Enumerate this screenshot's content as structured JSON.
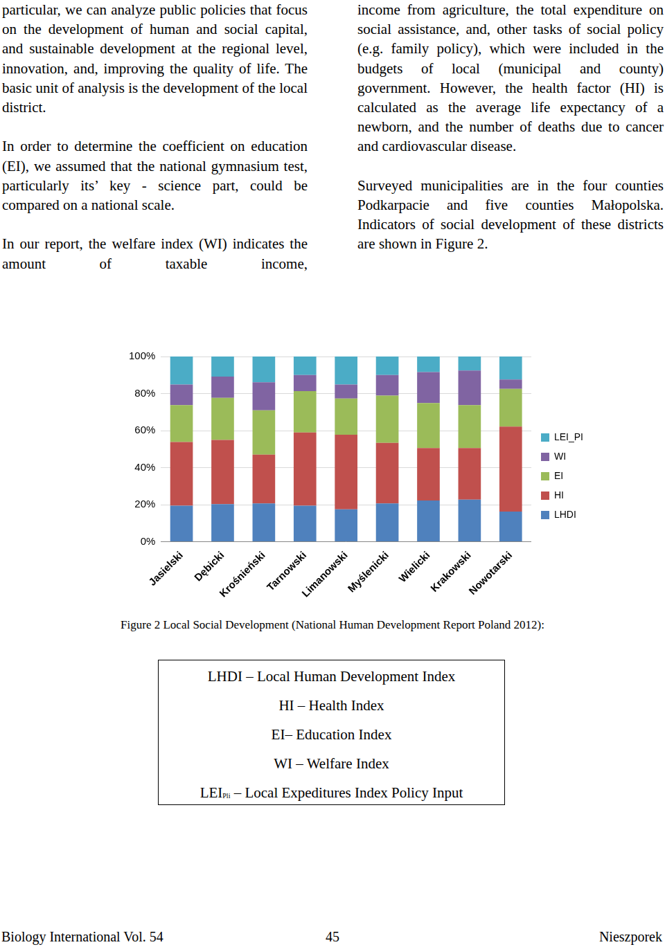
{
  "left_column": [
    "particular, we can analyze public policies that focus on the development of human and social capital, and sustainable development at the regional level, innovation, and, improving the quality of life. The basic unit of analysis is the development of the local district.",
    "In order to determine the coefficient on education (EI), we assumed that the national gymnasium test, particularly its’ key - science part, could be compared on a national scale.",
    "In our report, the welfare index (WI) indicates the amount of taxable income,"
  ],
  "right_column": [
    "income from agriculture, the total expenditure on social assistance, and, other tasks of social policy (e.g. family policy), which were included in the budgets of local (municipal and county) government. However, the health factor (HI) is calculated as the average life expectancy of a newborn, and the number of deaths due to cancer and cardiovascular disease.",
    "Surveyed municipalities are in the four counties Podkarpacie and five counties Małopolska. Indicators of social development of these districts are shown in Figure 2."
  ],
  "chart_data": {
    "type": "bar",
    "stacked": true,
    "grid": true,
    "legend": "right",
    "categories": [
      "Jasielski",
      "Dębicki",
      "Krośnieński",
      "Tarnowski",
      "Limanowski",
      "Myślenicki",
      "Wielicki",
      "Krakowski",
      "Nowotarski"
    ],
    "series": [
      {
        "name": "LHDI",
        "color": "#4f81bd",
        "values": [
          19.5,
          20.3,
          20.7,
          19.5,
          17.5,
          20.7,
          22.3,
          22.7,
          16.3
        ]
      },
      {
        "name": "HI",
        "color": "#c0504d",
        "values": [
          34.3,
          34.7,
          26.3,
          39.5,
          40.3,
          32.7,
          28.3,
          27.9,
          45.9
        ]
      },
      {
        "name": "EI",
        "color": "#9bbb59",
        "values": [
          19.9,
          22.7,
          23.9,
          22.3,
          19.5,
          25.5,
          24.3,
          23.1,
          20.3
        ]
      },
      {
        "name": "WI",
        "color": "#8064a2",
        "values": [
          11.2,
          11.5,
          15.2,
          8.7,
          7.6,
          11.1,
          16.7,
          18.7,
          5.1
        ]
      },
      {
        "name": "LEI_PI",
        "color": "#4bacc6",
        "values": [
          15.1,
          10.8,
          13.9,
          10.0,
          15.1,
          10.0,
          8.4,
          7.6,
          12.4
        ]
      }
    ],
    "ylim": [
      0,
      100
    ],
    "yticks": [
      {
        "value": 0,
        "label": "0%"
      },
      {
        "value": 20,
        "label": "20%"
      },
      {
        "value": 40,
        "label": "40%"
      },
      {
        "value": 60,
        "label": "60%"
      },
      {
        "value": 80,
        "label": "80%"
      },
      {
        "value": 100,
        "label": "100%"
      }
    ]
  },
  "caption": "Figure 2 Local Social Development (National Human Development Report Poland 2012):",
  "abbreviations": [
    {
      "term": "LHDI",
      "sub": "",
      "definition": " – Local Human Development Index"
    },
    {
      "term": "HI",
      "sub": "",
      "definition": " – Health Index"
    },
    {
      "term": "EI",
      "sub": "",
      "definition": "– Education Index"
    },
    {
      "term": "WI",
      "sub": "",
      "definition": " – Welfare Index"
    },
    {
      "term": "LEI",
      "sub": "Pli",
      "definition": " – Local Expeditures Index Policy Input"
    }
  ],
  "footer": {
    "left": "Biology International Vol. 54",
    "center": "45",
    "right": "Nieszporek"
  }
}
